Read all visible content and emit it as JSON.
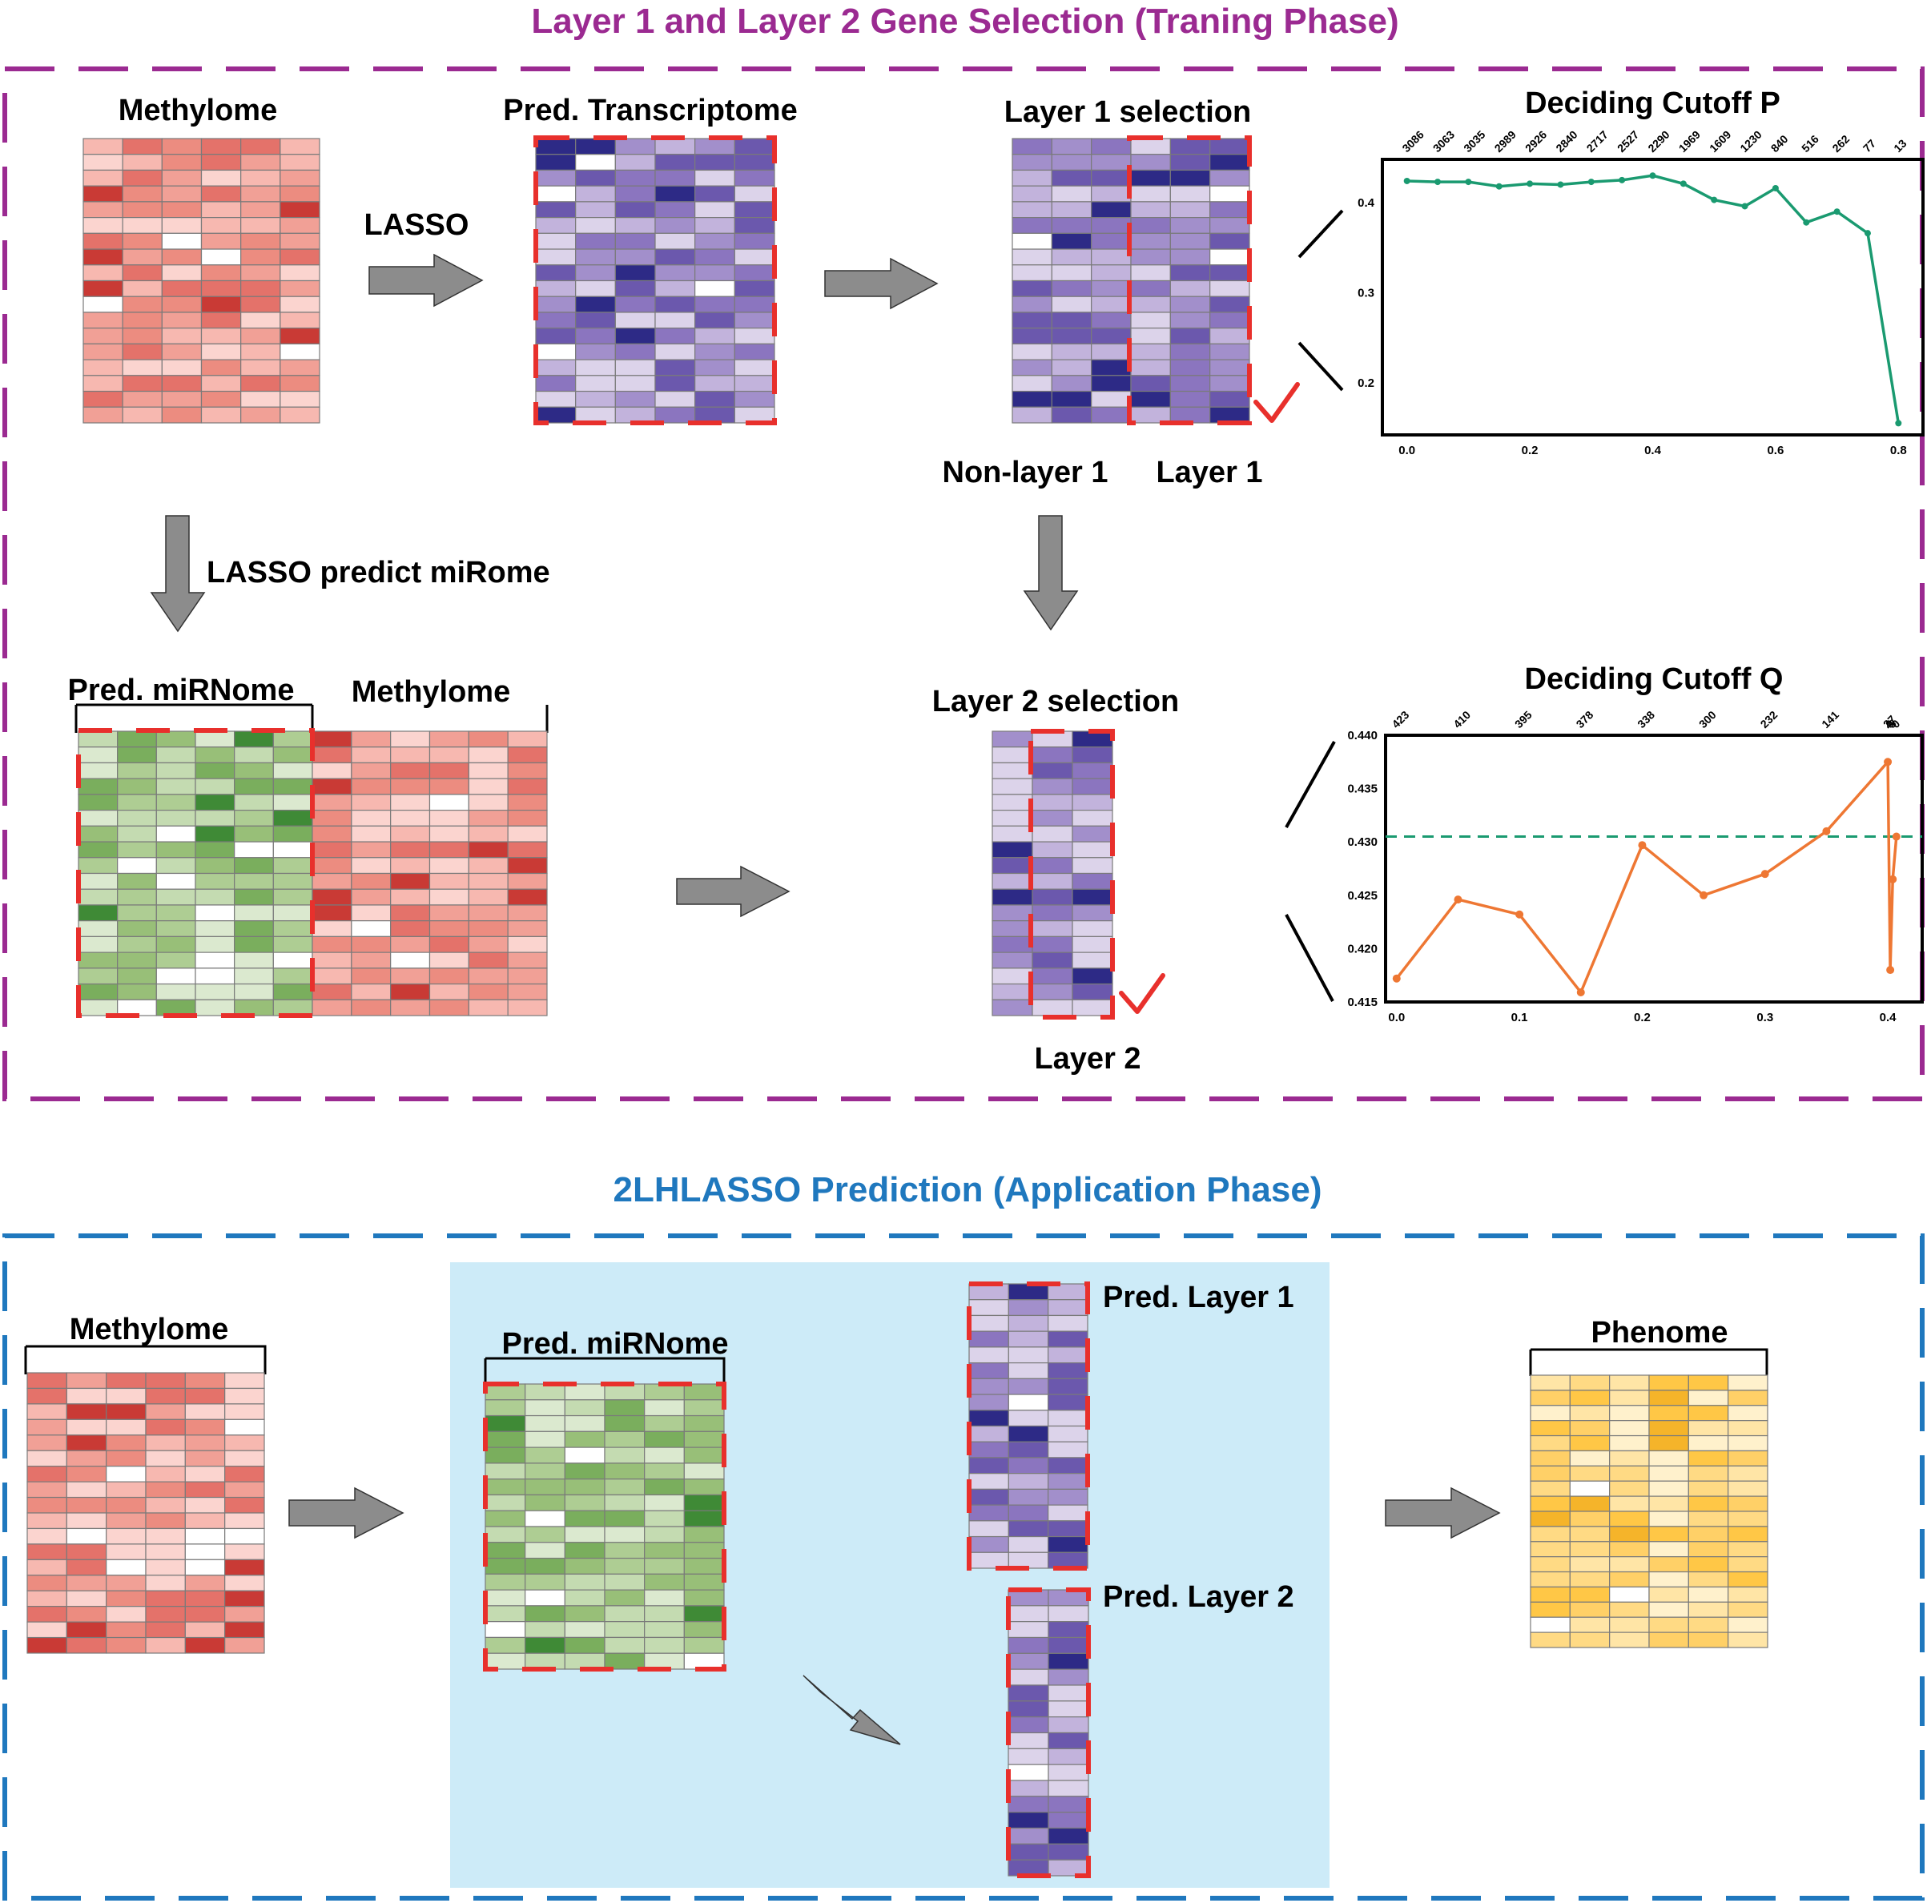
{
  "training": {
    "title": "Layer 1 and Layer 2 Gene Selection (Traning Phase)",
    "methylome_label": "Methylome",
    "pred_transcriptome_label": "Pred. Transcriptome",
    "lasso_label": "LASSO",
    "layer1_selection_label": "Layer 1 selection",
    "non_layer1_label": "Non-layer 1",
    "layer1_label": "Layer 1",
    "lasso_predict_label": "LASSO predict miRome",
    "pred_mirnome_label": "Pred. miRNome",
    "methylome_label_2": "Methylome",
    "layer2_selection_label": "Layer 2 selection",
    "layer2_label": "Layer 2"
  },
  "application": {
    "title": "2LHLASSO Prediction (Application Phase)",
    "methylome_label": "Methylome",
    "pred_mirnome_label": "Pred. miRNome",
    "pred_layer1_label": "Pred. Layer 1",
    "pred_layer2_label": "Pred. Layer 2",
    "phenome_label": "Phenome"
  },
  "colors": {
    "training_border": "#9b2a91",
    "application_border": "#1f78be",
    "highlight_dash": "#e8302c",
    "application_bg": "#cdebf8",
    "arrow_fill": "#8c8c8c",
    "cutoff_p_line": "#1a9a70",
    "cutoff_q_line": "#ee7733",
    "cutoff_q_threshold": "#1a9a70"
  },
  "chart_data": [
    {
      "type": "line",
      "title": "Deciding Cutoff P",
      "x": [
        0.0,
        0.05,
        0.1,
        0.15,
        0.2,
        0.25,
        0.3,
        0.35,
        0.4,
        0.45,
        0.5,
        0.55,
        0.6,
        0.65,
        0.7,
        0.75,
        0.8
      ],
      "y": [
        0.424,
        0.423,
        0.423,
        0.418,
        0.421,
        0.42,
        0.423,
        0.425,
        0.43,
        0.421,
        0.403,
        0.396,
        0.416,
        0.378,
        0.39,
        0.366,
        0.155
      ],
      "top_labels": [
        "3086",
        "3063",
        "3035",
        "2989",
        "2926",
        "2840",
        "2717",
        "2527",
        "2290",
        "1969",
        "1609",
        "1230",
        "840",
        "516",
        "262",
        "77",
        "13"
      ],
      "xticks": [
        "0.0",
        "0.2",
        "0.4",
        "0.6",
        "0.8"
      ],
      "yticks": [
        "0.2",
        "0.3",
        "0.4"
      ],
      "xlim": [
        -0.04,
        0.84
      ],
      "ylim": [
        0.142,
        0.448
      ]
    },
    {
      "type": "line",
      "title": "Deciding Cutoff Q",
      "x": [
        0.0,
        0.05,
        0.1,
        0.15,
        0.2,
        0.25,
        0.3,
        0.35,
        0.4,
        0.402,
        0.404,
        0.407
      ],
      "y": [
        0.4172,
        0.4246,
        0.4232,
        0.4159,
        0.4297,
        0.425,
        0.427,
        0.431,
        0.4375,
        0.418,
        0.4265,
        0.4305
      ],
      "top_labels": [
        "423",
        "410",
        "395",
        "378",
        "338",
        "300",
        "232",
        "141",
        "27",
        "9",
        "5",
        "0"
      ],
      "threshold": 0.4305,
      "xticks": [
        "0.0",
        "0.1",
        "0.2",
        "0.3",
        "0.4"
      ],
      "yticks": [
        "0.415",
        "0.420",
        "0.425",
        "0.430",
        "0.435",
        "0.440"
      ],
      "xlim": [
        -0.009,
        0.428
      ],
      "ylim": [
        0.415,
        0.44
      ]
    }
  ]
}
